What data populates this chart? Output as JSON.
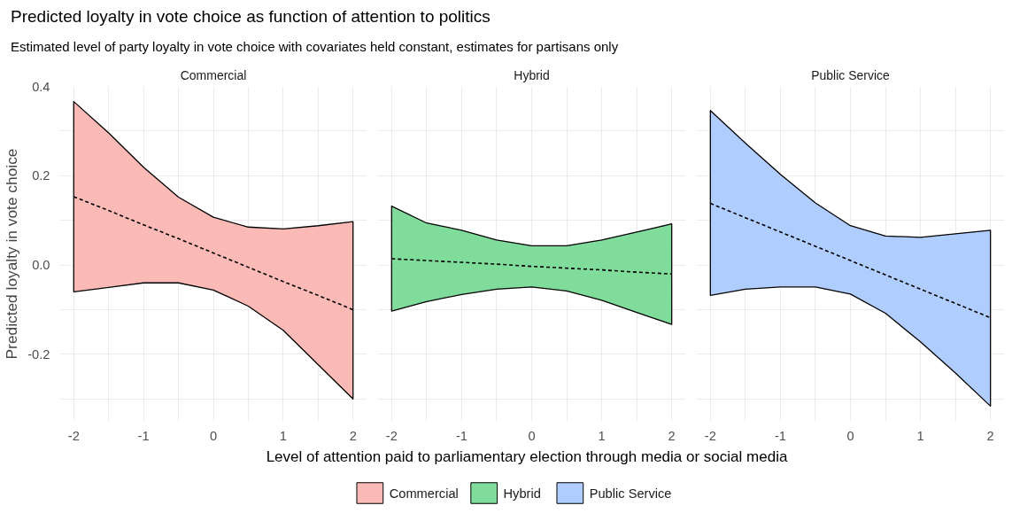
{
  "chart_data": [
    {
      "type": "line",
      "title": "Commercial",
      "annotations": [
        "Predicted loyalty in vote choice as function of attention to politics",
        "Estimated level of party loyalty in vote choice with covariates held constant, estimates for partisans only"
      ],
      "ylabel": "Predicted loyalty in vote choice",
      "xlim": [
        -2.2,
        2.2
      ],
      "ylim": [
        -0.35,
        0.4
      ],
      "xticks": [
        -2,
        {
          "value": -1.5,
          "label": null
        },
        -1,
        {
          "value": -0.5,
          "label": null
        },
        0,
        {
          "value": 0.5,
          "label": null
        },
        1,
        {
          "value": 1.5,
          "label": null
        },
        2
      ],
      "yticks": [
        {
          "value": -0.3,
          "label": null
        },
        -0.2,
        {
          "value": -0.1,
          "label": null
        },
        {
          "value": 0,
          "label": "0.0"
        },
        {
          "value": 0.1,
          "label": null
        },
        0.2,
        {
          "value": 0.3,
          "label": null
        },
        0.4
      ],
      "grid": true,
      "legend": "bottom",
      "line_style": "dashed",
      "series": [
        {
          "name": "Commercial",
          "color": "#000000",
          "colors": [
            "#fbbab6",
            "#fbbab6",
            "#fbbab6",
            "#fbbab6",
            "#fbbab6",
            "#fbbab6",
            "#fbbab6",
            "#fbbab6",
            "#fbbab6"
          ],
          "x": [
            -2,
            -1.5,
            -1,
            -0.5,
            0,
            0.5,
            1,
            1.5,
            2
          ],
          "values": [
            0.153,
            0.122,
            0.09,
            0.059,
            0.027,
            -0.005,
            -0.037,
            -0.068,
            -0.1
          ],
          "lower": [
            -0.06,
            -0.05,
            -0.04,
            -0.04,
            -0.056,
            -0.092,
            -0.146,
            -0.223,
            -0.3
          ],
          "upper": [
            0.366,
            0.296,
            0.219,
            0.152,
            0.107,
            0.085,
            0.081,
            0.088,
            0.097
          ]
        }
      ]
    },
    {
      "type": "line",
      "title": "Hybrid",
      "xlabel": "Level of attention paid to parliamentary election through media or social media",
      "xlim": [
        -2.2,
        2.2
      ],
      "ylim": [
        -0.35,
        0.4
      ],
      "xticks": [
        -2,
        {
          "value": -1.5,
          "label": null
        },
        -1,
        {
          "value": -0.5,
          "label": null
        },
        0,
        {
          "value": 0.5,
          "label": null
        },
        1,
        {
          "value": 1.5,
          "label": null
        },
        2
      ],
      "yticks": [
        {
          "value": -0.3,
          "label": null
        },
        -0.2,
        {
          "value": -0.1,
          "label": null
        },
        0.0,
        {
          "value": 0.1,
          "label": null
        },
        0.2,
        {
          "value": 0.3,
          "label": null
        },
        0.4
      ],
      "grid": true,
      "legend": "bottom",
      "line_style": "dashed",
      "tick_labels": "x",
      "series": [
        {
          "name": "Hybrid",
          "color": "#000000",
          "colors": [
            "#7fdc9b",
            "#7fdc9b",
            "#7fdc9b",
            "#7fdc9b",
            "#7fdc9b",
            "#7fdc9b",
            "#7fdc9b",
            "#7fdc9b",
            "#7fdc9b"
          ],
          "x": [
            -2,
            -1.5,
            -1,
            -0.5,
            0,
            0.5,
            1,
            1.5,
            2
          ],
          "values": [
            0.014,
            0.01,
            0.006,
            0.002,
            -0.003,
            -0.007,
            -0.011,
            -0.016,
            -0.02
          ],
          "lower": [
            -0.103,
            -0.082,
            -0.066,
            -0.054,
            -0.049,
            -0.058,
            -0.079,
            -0.106,
            -0.133
          ],
          "upper": [
            0.132,
            0.094,
            0.078,
            0.056,
            0.043,
            0.043,
            0.056,
            0.074,
            0.092
          ]
        }
      ]
    },
    {
      "type": "line",
      "title": "Public Service",
      "xlim": [
        -2.2,
        2.2
      ],
      "ylim": [
        -0.35,
        0.4
      ],
      "xticks": [
        -2,
        {
          "value": -1.5,
          "label": null
        },
        -1,
        {
          "value": -0.5,
          "label": null
        },
        0,
        {
          "value": 0.5,
          "label": null
        },
        1,
        {
          "value": 1.5,
          "label": null
        },
        2
      ],
      "yticks": [
        {
          "value": -0.3,
          "label": null
        },
        -0.2,
        {
          "value": -0.1,
          "label": null
        },
        0.0,
        {
          "value": 0.1,
          "label": null
        },
        0.2,
        {
          "value": 0.3,
          "label": null
        },
        0.4
      ],
      "grid": true,
      "legend": "bottom",
      "line_style": "dashed",
      "tick_labels": "x",
      "series": [
        {
          "name": "Public Service",
          "color": "#000000",
          "colors": [
            "#b0cdff",
            "#b0cdff",
            "#b0cdff",
            "#b0cdff",
            "#b0cdff",
            "#b0cdff",
            "#b0cdff",
            "#b0cdff",
            "#b0cdff"
          ],
          "x": [
            -2,
            -1.5,
            -1,
            -0.5,
            0,
            0.5,
            1,
            1.5,
            2
          ],
          "values": [
            0.138,
            0.106,
            0.074,
            0.042,
            0.01,
            -0.022,
            -0.054,
            -0.086,
            -0.118
          ],
          "lower": [
            -0.068,
            -0.054,
            -0.049,
            -0.049,
            -0.065,
            -0.108,
            -0.172,
            -0.242,
            -0.316
          ],
          "upper": [
            0.346,
            0.273,
            0.203,
            0.139,
            0.088,
            0.065,
            0.062,
            0.07,
            0.078
          ]
        }
      ]
    }
  ]
}
